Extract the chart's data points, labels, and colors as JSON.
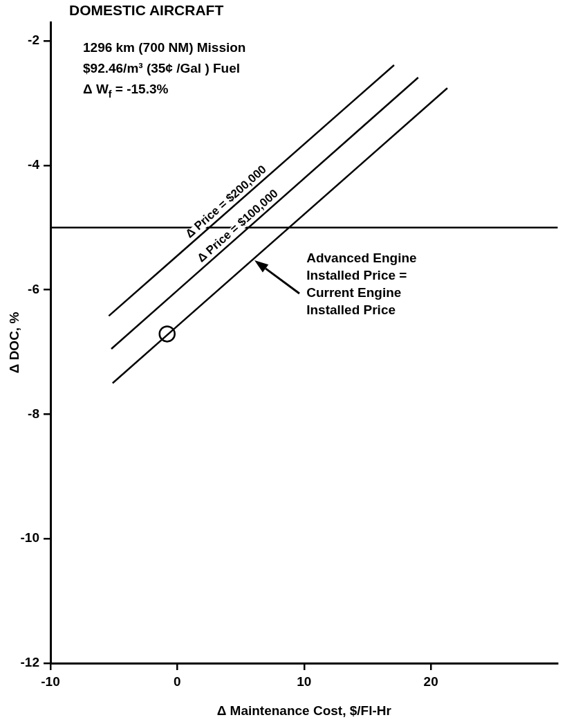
{
  "chart_data": {
    "type": "line",
    "title": "DOMESTIC AIRCRAFT",
    "xlabel": "Δ Maintenance Cost, $/Fl-Hr",
    "ylabel": "Δ DOC, %",
    "xlim": [
      -10,
      30
    ],
    "xticks": [
      -10,
      0,
      10,
      20
    ],
    "ylim": [
      -12,
      -1.7
    ],
    "yticks": [
      -12,
      -10,
      -8,
      -6,
      -4,
      -2
    ],
    "grid": false,
    "legend": false,
    "marker": "none",
    "line_style": "solid",
    "series": [
      {
        "name": "Δ Price = $200,000",
        "color": "#000000",
        "x": [
          -5.4,
          17.1
        ],
        "values": [
          -6.42,
          -2.39
        ]
      },
      {
        "name": "Δ Price = $100,000",
        "color": "#000000",
        "x": [
          -5.2,
          19.0
        ],
        "values": [
          -6.95,
          -2.59
        ]
      },
      {
        "color": "#000000",
        "x": [
          -5.1,
          21.3
        ],
        "values": [
          -7.5,
          -2.76
        ]
      },
      {
        "type": "scatter",
        "marker": "circle",
        "color": "#000000",
        "x": [
          -0.8
        ],
        "values": [
          -6.71
        ]
      }
    ],
    "ref_lines": [
      {
        "axis": "y",
        "value": -5,
        "color": "#000000"
      }
    ],
    "annotations": [
      "1296 km (700 NM) Mission",
      "$92.46/m³ (35¢ /Gal ) Fuel",
      "Δ W$_{f}$ = -15.3%",
      "Advanced Engine\nInstalled Price =\nCurrent Engine\nInstalled Price"
    ]
  }
}
